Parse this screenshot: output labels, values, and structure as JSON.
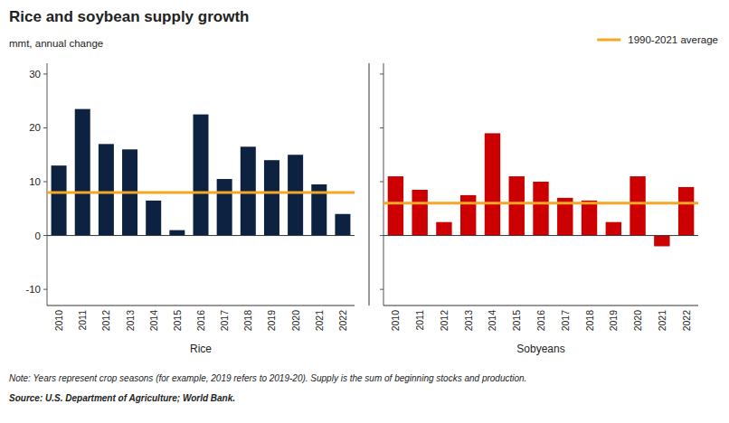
{
  "chart_data": [
    {
      "type": "bar",
      "title": "Rice and soybean supply growth",
      "y_label": "mmt, annual change",
      "x_label": "Rice",
      "categories": [
        "2010",
        "2011",
        "2012",
        "2013",
        "2014",
        "2015",
        "2016",
        "2017",
        "2018",
        "2019",
        "2020",
        "2021",
        "2022"
      ],
      "values": [
        13,
        23.5,
        17,
        16,
        6.5,
        1,
        22.5,
        10.5,
        16.5,
        14,
        15,
        9.5,
        4
      ],
      "color": "#0d2240",
      "average": 8,
      "average_color": "#f5a623",
      "average_label": "1990-2021 average",
      "legend": "upper right",
      "ylim": [
        -13,
        32
      ],
      "yticks": [
        -10,
        0,
        10,
        20,
        30
      ],
      "grid": false,
      "annotations": [
        "Note: Years represent crop seasons (for example, 2019 refers to 2019-20). Supply is the sum of beginning stocks and production.",
        "Source: U.S. Department of Agriculture; World Bank."
      ]
    },
    {
      "type": "bar",
      "x_label": "Sobyeans",
      "categories": [
        "2010",
        "2011",
        "2012",
        "2013",
        "2014",
        "2015",
        "2016",
        "2017",
        "2018",
        "2019",
        "2020",
        "2021",
        "2022"
      ],
      "values": [
        11,
        8.5,
        2.5,
        7.5,
        19,
        11,
        10,
        7,
        6.5,
        2.5,
        11,
        -2,
        9
      ],
      "color": "#cc0000",
      "average": 6,
      "average_color": "#f5a623",
      "ylim": [
        -13,
        32
      ],
      "yticks": [
        -10,
        0,
        10,
        20,
        30
      ],
      "grid": false,
      "tick_labels": "x"
    }
  ]
}
